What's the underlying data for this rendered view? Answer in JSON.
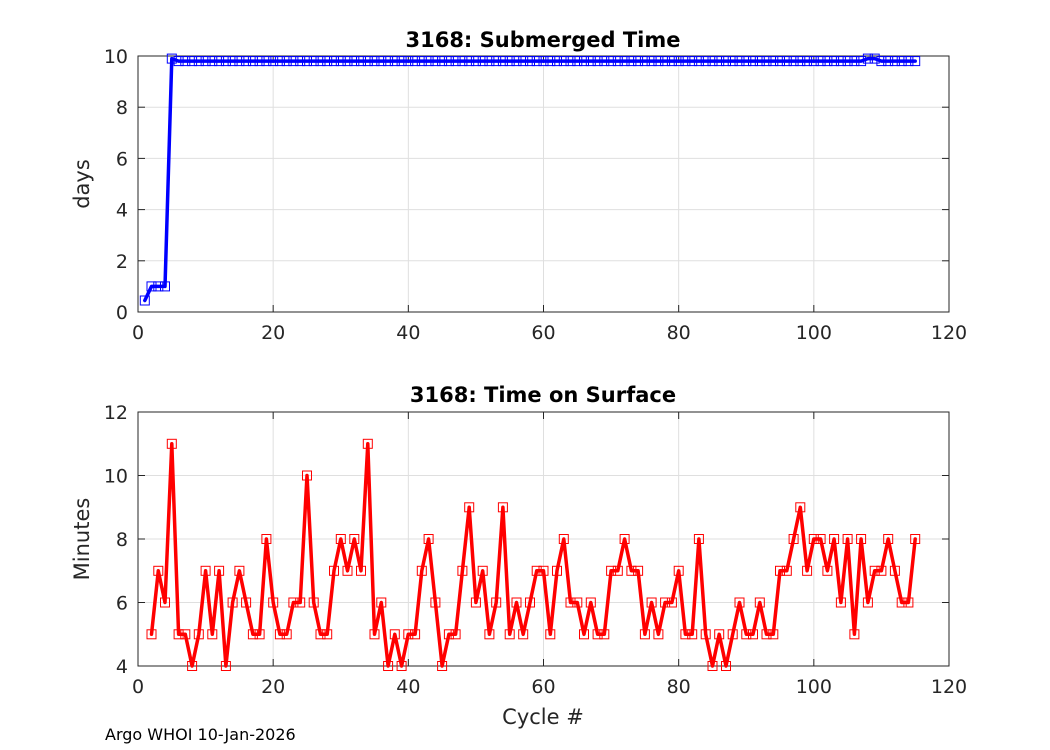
{
  "footer": "Argo WHOI 10-Jan-2026",
  "chart_data": [
    {
      "type": "line",
      "title": "3168: Submerged Time",
      "xlabel": "",
      "ylabel": "days",
      "xlim": [
        0,
        120
      ],
      "ylim": [
        0,
        10
      ],
      "xticks": [
        "0",
        "20",
        "40",
        "60",
        "80",
        "100",
        "120"
      ],
      "yticks": [
        "0",
        "2",
        "4",
        "6",
        "8",
        "10"
      ],
      "grid": true,
      "color": "#0000ff",
      "marker": "square",
      "x": [
        1,
        2,
        3,
        4,
        5,
        6,
        7,
        8,
        9,
        10,
        11,
        12,
        13,
        14,
        15,
        16,
        17,
        18,
        19,
        20,
        21,
        22,
        23,
        24,
        25,
        26,
        27,
        28,
        29,
        30,
        31,
        32,
        33,
        34,
        35,
        36,
        37,
        38,
        39,
        40,
        41,
        42,
        43,
        44,
        45,
        46,
        47,
        48,
        49,
        50,
        51,
        52,
        53,
        54,
        55,
        56,
        57,
        58,
        59,
        60,
        61,
        62,
        63,
        64,
        65,
        66,
        67,
        68,
        69,
        70,
        71,
        72,
        73,
        74,
        75,
        76,
        77,
        78,
        79,
        80,
        81,
        82,
        83,
        84,
        85,
        86,
        87,
        88,
        89,
        90,
        91,
        92,
        93,
        94,
        95,
        96,
        97,
        98,
        99,
        100,
        101,
        102,
        103,
        104,
        105,
        106,
        107,
        108,
        109,
        110,
        111,
        112,
        113,
        114,
        115
      ],
      "y": [
        0.45,
        1.0,
        1.0,
        1.0,
        9.9,
        9.8,
        9.8,
        9.8,
        9.8,
        9.8,
        9.8,
        9.8,
        9.8,
        9.8,
        9.8,
        9.8,
        9.8,
        9.8,
        9.8,
        9.8,
        9.8,
        9.8,
        9.8,
        9.8,
        9.8,
        9.8,
        9.8,
        9.8,
        9.8,
        9.8,
        9.8,
        9.8,
        9.8,
        9.8,
        9.8,
        9.8,
        9.8,
        9.8,
        9.8,
        9.8,
        9.8,
        9.8,
        9.8,
        9.8,
        9.8,
        9.8,
        9.8,
        9.8,
        9.8,
        9.8,
        9.8,
        9.8,
        9.8,
        9.8,
        9.8,
        9.8,
        9.8,
        9.8,
        9.8,
        9.8,
        9.8,
        9.8,
        9.8,
        9.8,
        9.8,
        9.8,
        9.8,
        9.8,
        9.8,
        9.8,
        9.8,
        9.8,
        9.8,
        9.8,
        9.8,
        9.8,
        9.8,
        9.8,
        9.8,
        9.8,
        9.8,
        9.8,
        9.8,
        9.8,
        9.8,
        9.8,
        9.8,
        9.8,
        9.8,
        9.8,
        9.8,
        9.8,
        9.8,
        9.8,
        9.8,
        9.8,
        9.8,
        9.8,
        9.8,
        9.8,
        9.8,
        9.8,
        9.8,
        9.8,
        9.8,
        9.8,
        9.8,
        9.9,
        9.9,
        9.8,
        9.8,
        9.8,
        9.8,
        9.8,
        9.8
      ]
    },
    {
      "type": "line",
      "title": "3168: Time on Surface",
      "xlabel": "Cycle #",
      "ylabel": "Minutes",
      "xlim": [
        0,
        120
      ],
      "ylim": [
        4,
        12
      ],
      "xticks": [
        "0",
        "20",
        "40",
        "60",
        "80",
        "100",
        "120"
      ],
      "yticks": [
        "4",
        "6",
        "8",
        "10",
        "12"
      ],
      "grid": true,
      "color": "#ff0000",
      "marker": "square",
      "x": [
        2,
        3,
        4,
        5,
        6,
        7,
        8,
        9,
        10,
        11,
        12,
        13,
        14,
        15,
        16,
        17,
        18,
        19,
        20,
        21,
        22,
        23,
        24,
        25,
        26,
        27,
        28,
        29,
        30,
        31,
        32,
        33,
        34,
        35,
        36,
        37,
        38,
        39,
        40,
        41,
        42,
        43,
        44,
        45,
        46,
        47,
        48,
        49,
        50,
        51,
        52,
        53,
        54,
        55,
        56,
        57,
        58,
        59,
        60,
        61,
        62,
        63,
        64,
        65,
        66,
        67,
        68,
        69,
        70,
        71,
        72,
        73,
        74,
        75,
        76,
        77,
        78,
        79,
        80,
        81,
        82,
        83,
        84,
        85,
        86,
        87,
        88,
        89,
        90,
        91,
        92,
        93,
        94,
        95,
        96,
        97,
        98,
        99,
        100,
        101,
        102,
        103,
        104,
        105,
        106,
        107,
        108,
        109,
        110,
        111,
        112,
        113,
        114,
        115
      ],
      "y": [
        5,
        7,
        6,
        11,
        5,
        5,
        4,
        5,
        7,
        5,
        7,
        4,
        6,
        7,
        6,
        5,
        5,
        8,
        6,
        5,
        5,
        6,
        6,
        10,
        6,
        5,
        5,
        7,
        8,
        7,
        8,
        7,
        11,
        5,
        6,
        4,
        5,
        4,
        5,
        5,
        7,
        8,
        6,
        4,
        5,
        5,
        7,
        9,
        6,
        7,
        5,
        6,
        9,
        5,
        6,
        5,
        6,
        7,
        7,
        5,
        7,
        8,
        6,
        6,
        5,
        6,
        5,
        5,
        7,
        7,
        8,
        7,
        7,
        5,
        6,
        5,
        6,
        6,
        7,
        5,
        5,
        8,
        5,
        4,
        5,
        4,
        5,
        6,
        5,
        5,
        6,
        5,
        5,
        7,
        7,
        8,
        9,
        7,
        8,
        8,
        7,
        8,
        6,
        8,
        5,
        8,
        6,
        7,
        7,
        8,
        7,
        6,
        6,
        8
      ]
    }
  ]
}
